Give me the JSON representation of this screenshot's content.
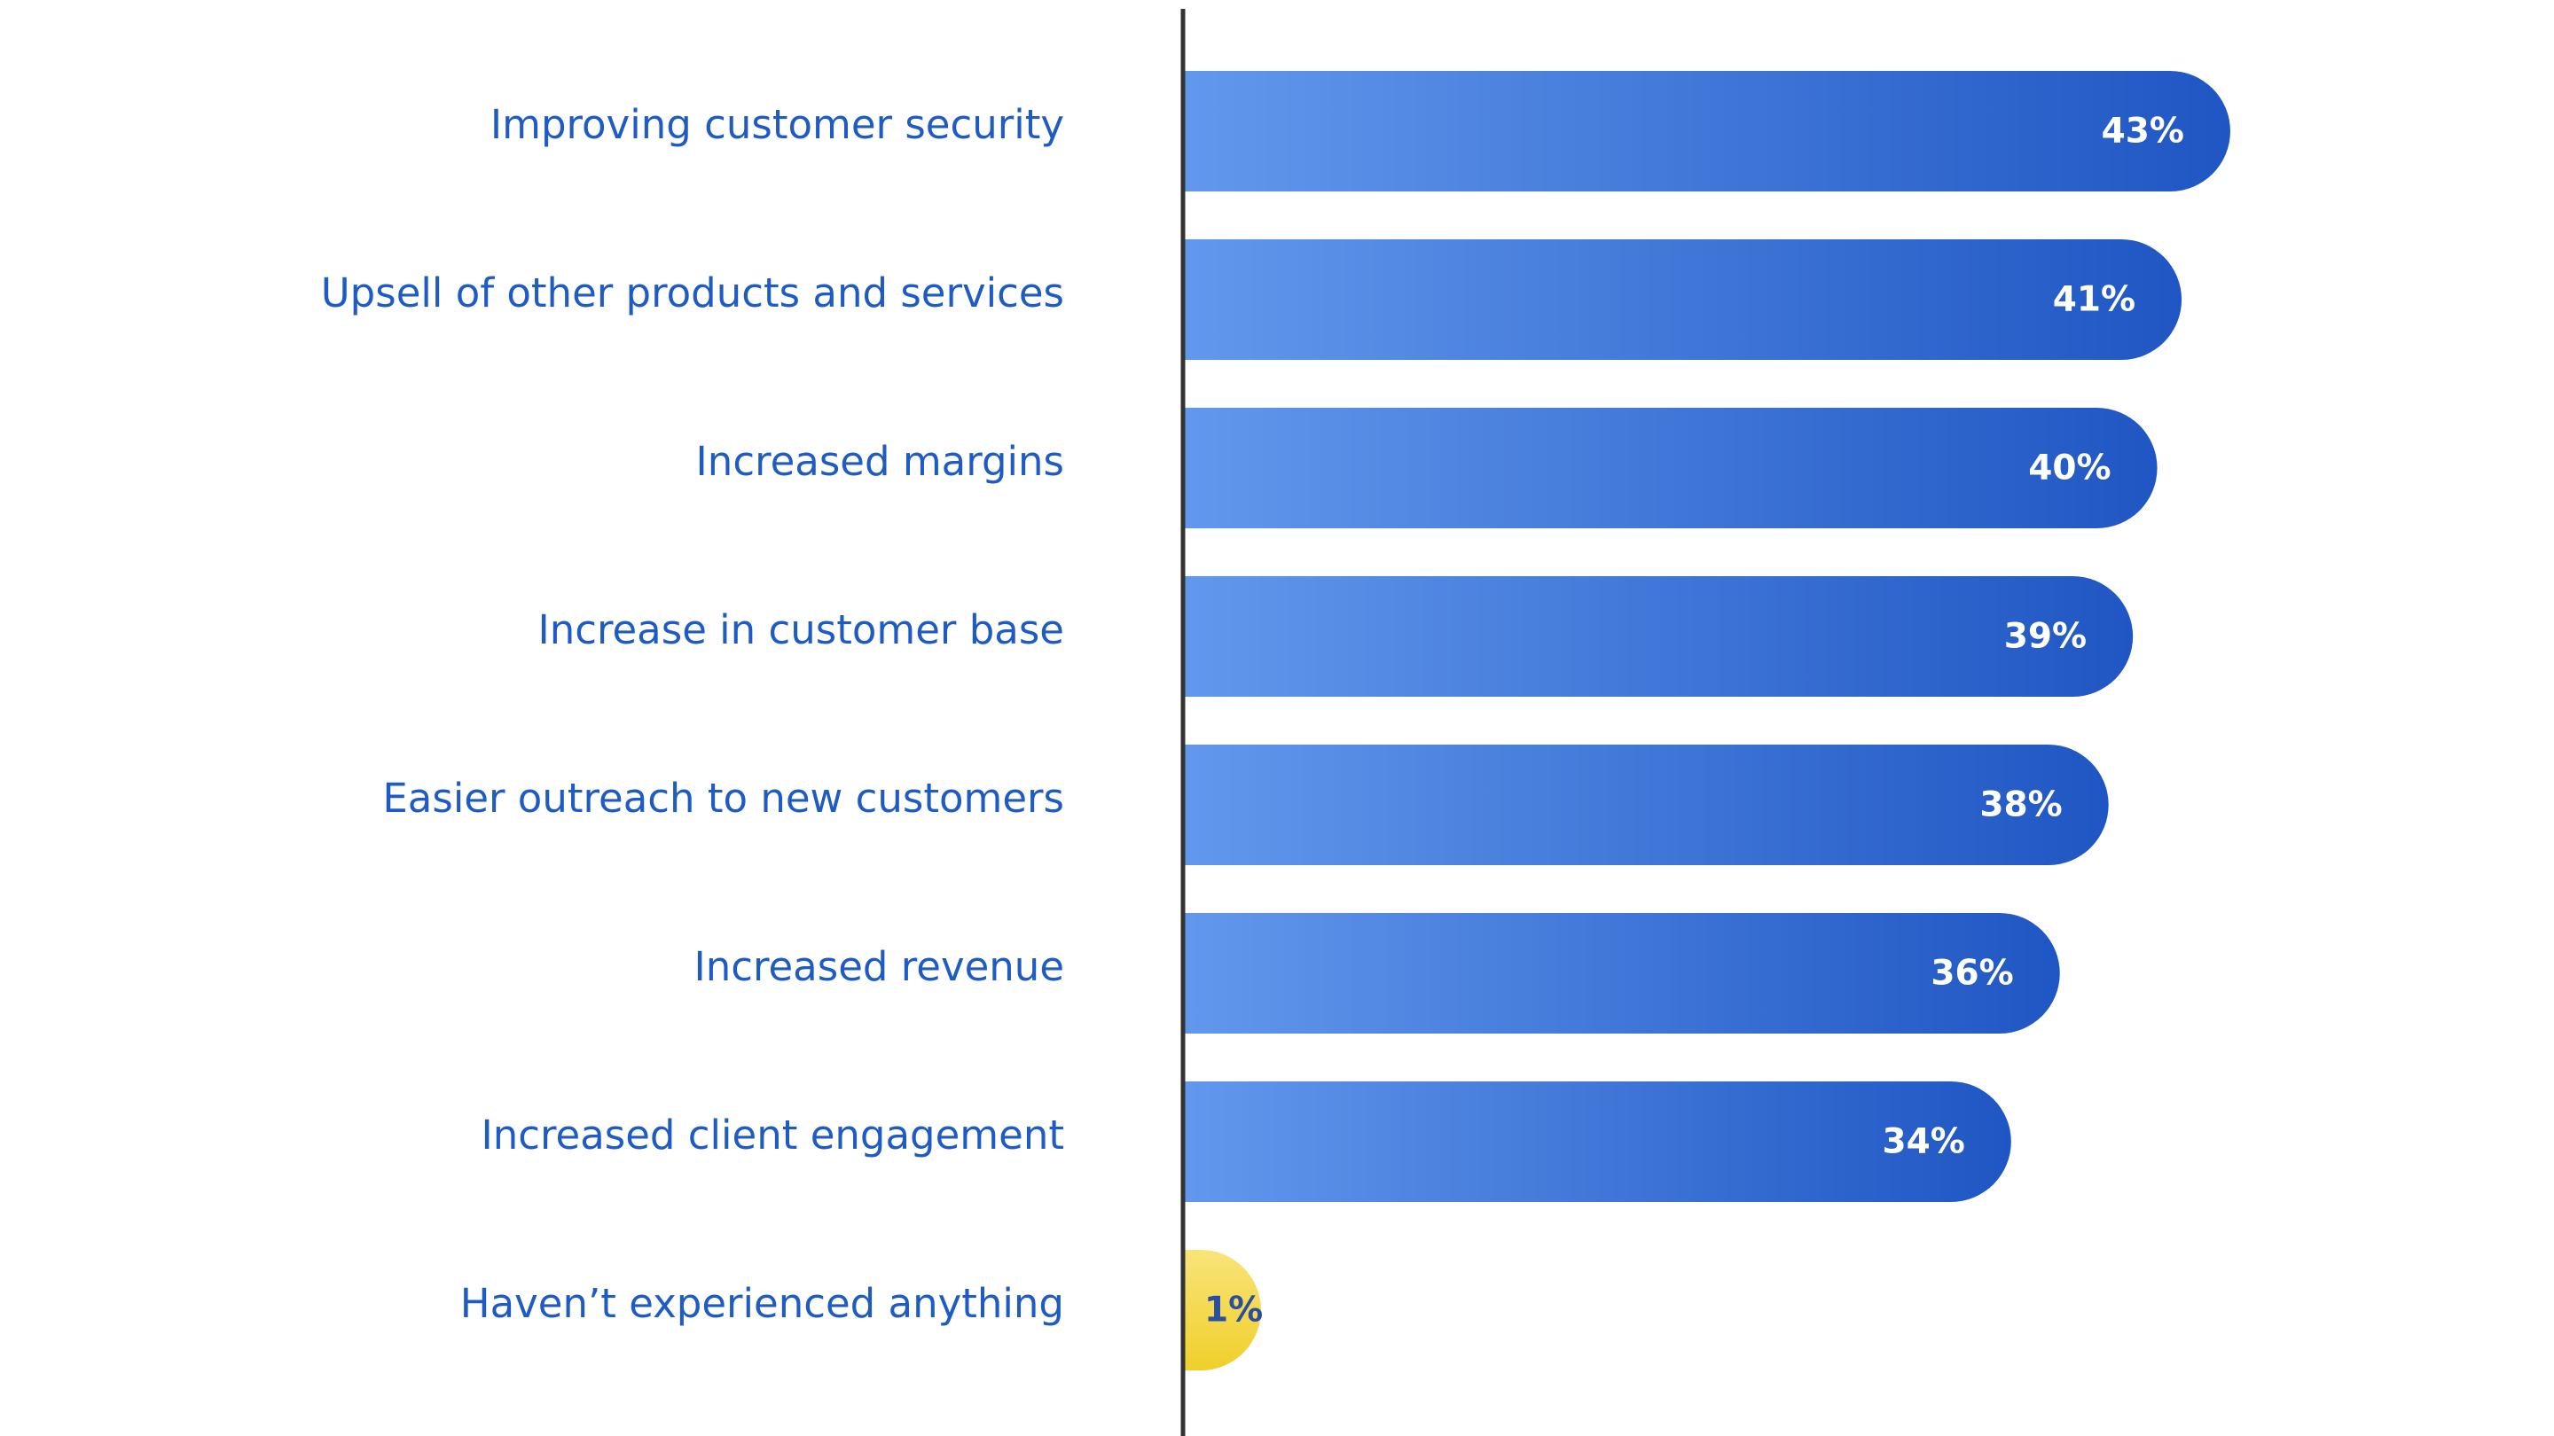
{
  "chart_data": {
    "type": "bar",
    "orientation": "horizontal",
    "title": "",
    "xlabel": "",
    "ylabel": "",
    "xlim": [
      0,
      43
    ],
    "grid": false,
    "categories": [
      "Improving customer security",
      "Upsell of other products and services",
      "Increased margins",
      "Increase in customer base",
      "Easier outreach to new customers",
      "Increased revenue",
      "Increased client engagement",
      "Haven’t experienced anything"
    ],
    "values": [
      43,
      41,
      40,
      39,
      38,
      36,
      34,
      1
    ],
    "value_labels": [
      "43%",
      "41%",
      "40%",
      "39%",
      "38%",
      "36%",
      "34%",
      "1%"
    ],
    "colors": {
      "bar_gradient_start": "#6298ec",
      "bar_gradient_end": "#1f56c3",
      "highlight_gradient_start": "#f8e47a",
      "highlight_gradient_end": "#f0cf2a",
      "category_text": "#1f5bc4",
      "value_text": "#ffffff",
      "highlight_value_text": "#2b4fa0",
      "axis": "#333333"
    },
    "highlight_index": 7
  }
}
